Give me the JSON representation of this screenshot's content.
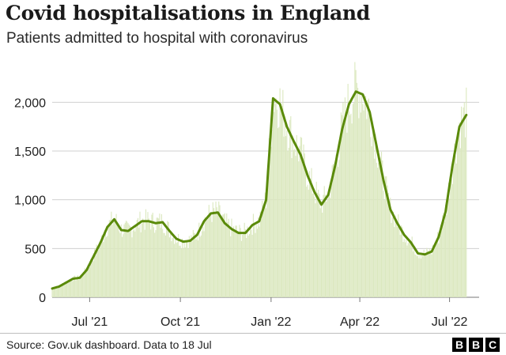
{
  "title": "Covid hospitalisations in England",
  "subtitle": "Patients admitted to hospital with coronavirus",
  "source": "Source: Gov.uk dashboard. Data to 18 Jul",
  "logo": [
    "B",
    "B",
    "C"
  ],
  "colors": {
    "bars": "#dbe8bf",
    "line": "#5a8a0a",
    "grid": "#d0d0d0",
    "text": "#222222"
  },
  "chart_data": {
    "type": "bar",
    "title": "Covid hospitalisations in England",
    "subtitle": "Patients admitted to hospital with coronavirus",
    "ylim": [
      0,
      2400
    ],
    "yticks": [
      0,
      500,
      1000,
      1500,
      2000
    ],
    "ytick_labels": [
      "0",
      "500",
      "1,000",
      "1,500",
      "2,000"
    ],
    "xticks": [
      "Jul '21",
      "Oct '21",
      "Jan '22",
      "Apr '22",
      "Jul '22"
    ],
    "grid": true,
    "series": [
      {
        "type": "line",
        "values_by_week": {
          "weeks_start": "2021-05-24",
          "x": [
            "2021-05-24",
            "2021-05-31",
            "2021-06-07",
            "2021-06-14",
            "2021-06-21",
            "2021-06-28",
            "2021-07-05",
            "2021-07-12",
            "2021-07-19",
            "2021-07-26",
            "2021-08-02",
            "2021-08-09",
            "2021-08-16",
            "2021-08-23",
            "2021-08-30",
            "2021-09-06",
            "2021-09-13",
            "2021-09-20",
            "2021-09-27",
            "2021-10-04",
            "2021-10-11",
            "2021-10-18",
            "2021-10-25",
            "2021-11-01",
            "2021-11-08",
            "2021-11-15",
            "2021-11-22",
            "2021-11-29",
            "2021-12-06",
            "2021-12-13",
            "2021-12-20",
            "2021-12-27",
            "2022-01-03",
            "2022-01-10",
            "2022-01-17",
            "2022-01-24",
            "2022-01-31",
            "2022-02-07",
            "2022-02-14",
            "2022-02-21",
            "2022-02-28",
            "2022-03-07",
            "2022-03-14",
            "2022-03-21",
            "2022-03-28",
            "2022-04-04",
            "2022-04-11",
            "2022-04-18",
            "2022-04-25",
            "2022-05-02",
            "2022-05-09",
            "2022-05-16",
            "2022-05-23",
            "2022-05-30",
            "2022-06-06",
            "2022-06-13",
            "2022-06-20",
            "2022-06-27",
            "2022-07-04",
            "2022-07-11",
            "2022-07-18"
          ],
          "values": [
            90,
            110,
            150,
            190,
            200,
            280,
            420,
            560,
            720,
            800,
            690,
            680,
            730,
            780,
            780,
            760,
            770,
            680,
            600,
            570,
            580,
            640,
            780,
            860,
            870,
            760,
            700,
            660,
            660,
            740,
            780,
            1000,
            2040,
            1980,
            1750,
            1600,
            1460,
            1250,
            1080,
            950,
            1050,
            1350,
            1720,
            1980,
            2110,
            2080,
            1900,
            1550,
            1200,
            900,
            760,
            640,
            560,
            450,
            440,
            470,
            620,
            880,
            1350,
            1750,
            1870
          ]
        }
      }
    ]
  }
}
